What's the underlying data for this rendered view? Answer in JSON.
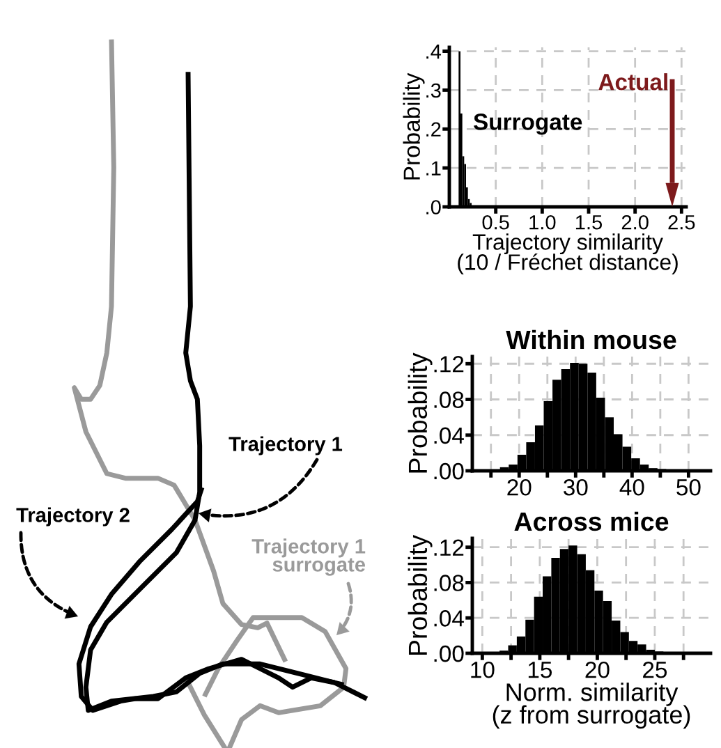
{
  "chart_data": [
    {
      "type": "other",
      "annotations": [
        "Trajectory 1",
        "Trajectory 2",
        "Trajectory 1\nsurrogate"
      ]
    },
    {
      "type": "histogram",
      "xlabel": "Trajectory similarity\n(10 / Fréchet distance)",
      "ylabel": "Probability",
      "bins": [
        0.1,
        0.12,
        0.14,
        0.16,
        0.18,
        0.2,
        0.22,
        0.24
      ],
      "values": [
        0.4,
        0.24,
        0.13,
        0.11,
        0.05,
        0.02,
        0.01
      ],
      "color": "#000000",
      "xlim": [
        0,
        2.55
      ],
      "xticks": [
        0.5,
        {
          "value": 1,
          "label": "1.0"
        },
        1.5,
        {
          "value": 2,
          "label": "2.0"
        },
        2.5
      ],
      "ylim": [
        0,
        0.41
      ],
      "yticks": [
        {
          "value": 0,
          "label": ".0"
        },
        {
          "value": 0.1,
          "label": ".1"
        },
        {
          "value": 0.2,
          "label": ".2"
        },
        {
          "value": 0.3,
          "label": ".3"
        },
        {
          "value": 0.4,
          "label": ".4"
        }
      ],
      "grid": true,
      "annotations": [
        "Surrogate"
      ],
      "ref_lines": [
        {
          "axis": "x",
          "value": 2.4,
          "label": "Actual",
          "color": "#7d1a1c"
        }
      ]
    },
    {
      "type": "histogram",
      "title": "Within mouse",
      "ylabel": "Probability",
      "bins": [
        13.5,
        15.05,
        16.6,
        18.15,
        19.7,
        21.25,
        22.8,
        24.35,
        25.9,
        27.45,
        29.0,
        30.55,
        32.1,
        33.65,
        35.2,
        36.75,
        38.3,
        39.85,
        41.4,
        42.95,
        44.5,
        46.05,
        47.6
      ],
      "values": [
        0.001,
        0.001,
        0.004,
        0.007,
        0.018,
        0.032,
        0.051,
        0.078,
        0.102,
        0.114,
        0.121,
        0.12,
        0.11,
        0.082,
        0.06,
        0.041,
        0.027,
        0.014,
        0.007,
        0.003,
        0.002,
        0.001
      ],
      "color": "#000000",
      "xlim": [
        11.7,
        53.9
      ],
      "xticks": [
        {
          "value": 15,
          "label": null
        },
        20,
        {
          "value": 25,
          "label": null
        },
        30,
        {
          "value": 35,
          "label": null
        },
        40,
        {
          "value": 45,
          "label": null
        },
        50
      ],
      "ylim": [
        0,
        0.128
      ],
      "yticks": [
        {
          "value": 0,
          "label": ".00"
        },
        {
          "value": 0.04,
          "label": ".04"
        },
        {
          "value": 0.08,
          "label": ".08"
        },
        {
          "value": 0.12,
          "label": ".12"
        }
      ],
      "grid": true
    },
    {
      "type": "histogram",
      "title": "Across mice",
      "xlabel": "Norm. similarity\n(z from surrogate)",
      "ylabel": "Probability",
      "bins": [
        10.0,
        10.75,
        11.5,
        12.25,
        13.0,
        13.75,
        14.5,
        15.25,
        16.0,
        16.75,
        17.5,
        18.25,
        19.0,
        19.75,
        20.5,
        21.25,
        22.0,
        22.75,
        23.5,
        24.25,
        25.0,
        25.75,
        26.5
      ],
      "values": [
        0.0005,
        0.001,
        0.003,
        0.009,
        0.019,
        0.038,
        0.064,
        0.087,
        0.108,
        0.118,
        0.122,
        0.112,
        0.094,
        0.071,
        0.059,
        0.037,
        0.024,
        0.014,
        0.01,
        0.004,
        0.002,
        0.001
      ],
      "color": "#000000",
      "xlim": [
        9.13,
        29.85
      ],
      "xticks": [
        10,
        {
          "value": 12.5,
          "label": null
        },
        15,
        {
          "value": 17.5,
          "label": null
        },
        20,
        {
          "value": 22.5,
          "label": null
        },
        25,
        {
          "value": 27.5,
          "label": null
        }
      ],
      "ylim": [
        0,
        0.13
      ],
      "yticks": [
        {
          "value": 0,
          "label": ".00"
        },
        {
          "value": 0.04,
          "label": ".04"
        },
        {
          "value": 0.08,
          "label": ".08"
        },
        {
          "value": 0.12,
          "label": ".12"
        }
      ],
      "grid": true
    }
  ]
}
